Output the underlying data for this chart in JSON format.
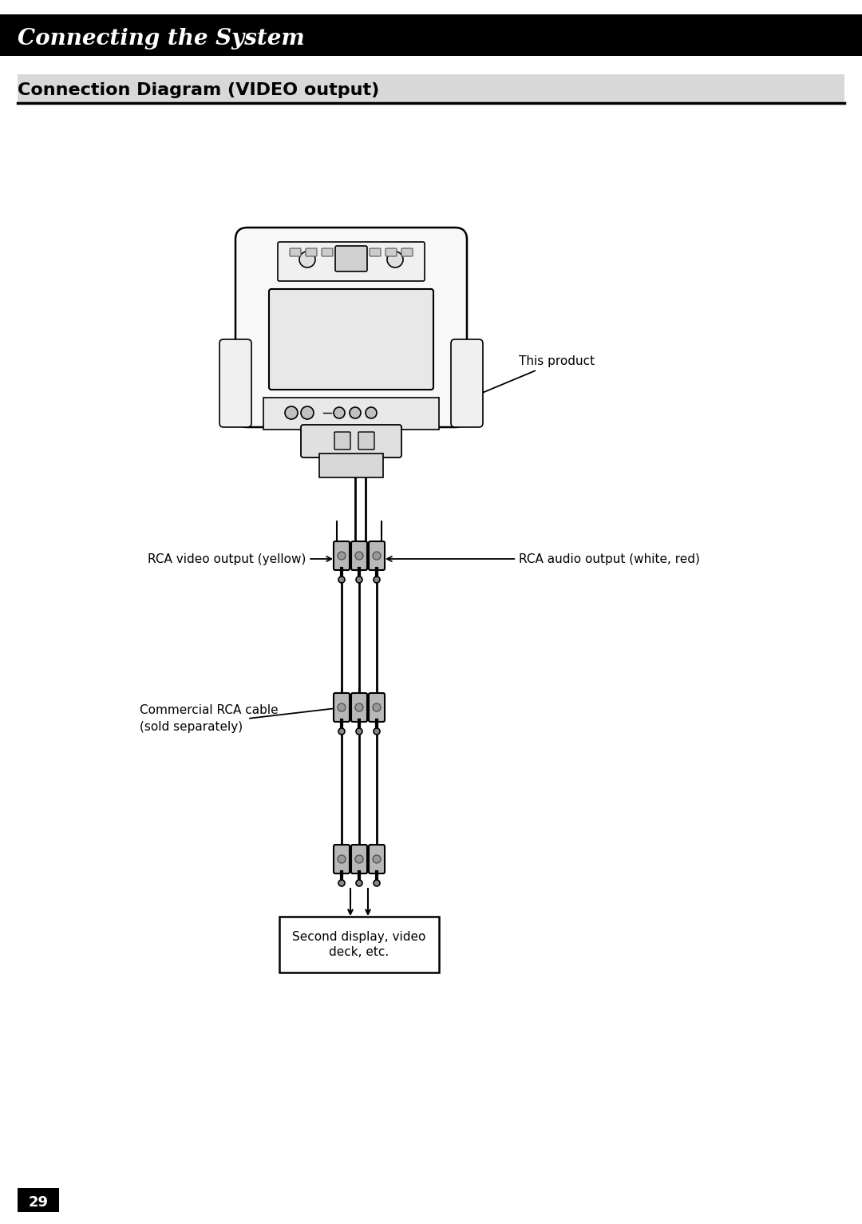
{
  "page_bg": "#ffffff",
  "title_bar_color": "#000000",
  "title_text": "Connecting the System",
  "title_text_color": "#ffffff",
  "title_font_style": "italic",
  "section_title": "Connection Diagram (VIDEO output)",
  "section_bg": "#d8d8d8",
  "section_line_color": "#000000",
  "page_number": "29",
  "page_number_bg": "#000000",
  "page_number_color": "#ffffff",
  "label_this_product": "This product",
  "label_rca_video": "RCA video output (yellow)",
  "label_rca_audio": "RCA audio output (white, red)",
  "label_rca_cable": "Commercial RCA cable\n(sold separately)",
  "label_display": "Second display, video\ndeck, etc.",
  "body_font_size": 11,
  "section_font_size": 16,
  "title_font_size": 20
}
